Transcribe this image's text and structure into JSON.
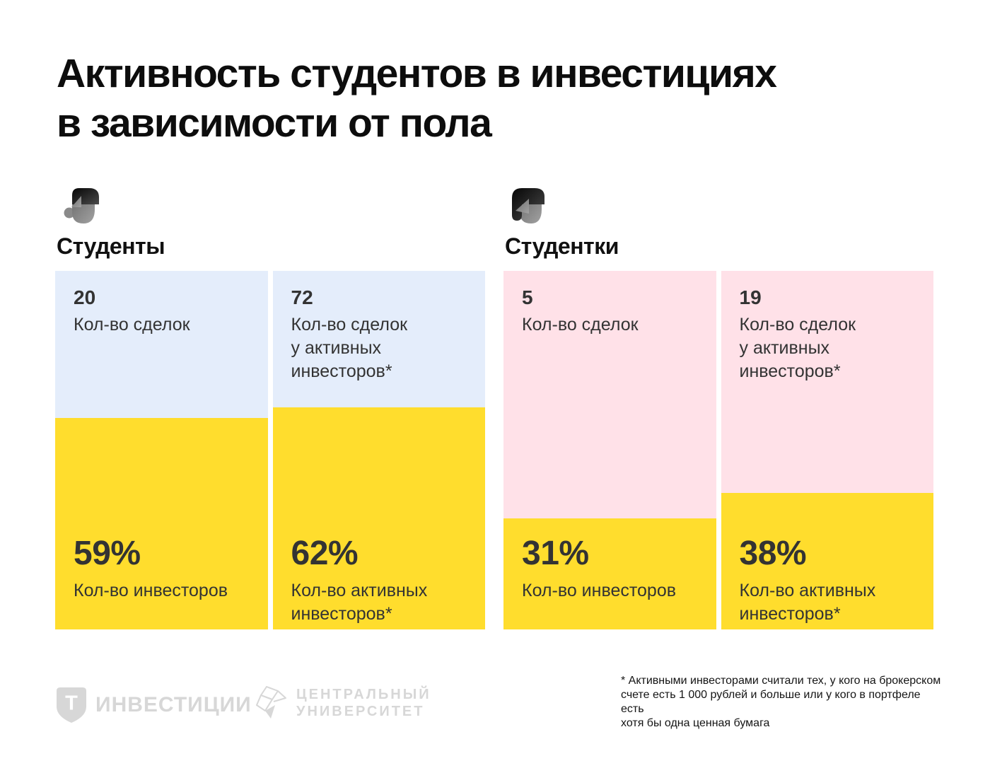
{
  "title": "Активность студентов в инвестициях\nв зависимости от пола",
  "colors": {
    "accent_yellow": "#FFDD2D",
    "male_tint": "#E4EDFB",
    "female_tint": "#FFE1E8"
  },
  "chart_data": {
    "type": "bar",
    "title": "Активность студентов в инвестициях в зависимости от пола",
    "categories": [
      "Кол-во сделок",
      "Кол-во сделок у активных инвесторов*",
      "Кол-во инвесторов, %",
      "Кол-во активных инвесторов*, %"
    ],
    "series": [
      {
        "name": "Студенты",
        "values": [
          20,
          72,
          59,
          62
        ]
      },
      {
        "name": "Студентки",
        "values": [
          5,
          19,
          31,
          38
        ]
      }
    ],
    "note": "* Активными инвесторами считали тех, у кого на брокерском счете есть 1 000 рублей и больше или у кого в портфеле есть хотя бы одна ценная бумага"
  },
  "groups": [
    {
      "label": "Студенты",
      "tint": "#E4EDFB",
      "cards": [
        {
          "value": "20",
          "value_label": "Кол-во сделок",
          "percent": "59%",
          "percent_value": 59,
          "percent_label": "Кол-во инвесторов"
        },
        {
          "value": "72",
          "value_label": "Кол-во сделок\nу активных\nинвесторов*",
          "percent": "62%",
          "percent_value": 62,
          "percent_label": "Кол-во активных\nинвесторов*"
        }
      ]
    },
    {
      "label": "Студентки",
      "tint": "#FFE1E8",
      "cards": [
        {
          "value": "5",
          "value_label": "Кол-во сделок",
          "percent": "31%",
          "percent_value": 31,
          "percent_label": "Кол-во инвесторов"
        },
        {
          "value": "19",
          "value_label": "Кол-во сделок\nу активных\nинвесторов*",
          "percent": "38%",
          "percent_value": 38,
          "percent_label": "Кол-во активных\nинвесторов*"
        }
      ]
    }
  ],
  "footer": {
    "tinvest_letter": "Т",
    "tinvest_label": "ИНВЕСТИЦИИ",
    "university_label": "ЦЕНТРАЛЬНЫЙ\nУНИВЕРСИТЕТ",
    "footnote": "* Активными инвесторами считали тех, у кого на брокерском\nсчете есть 1 000 рублей и больше или у кого в портфеле есть\nхотя бы одна ценная бумага"
  }
}
